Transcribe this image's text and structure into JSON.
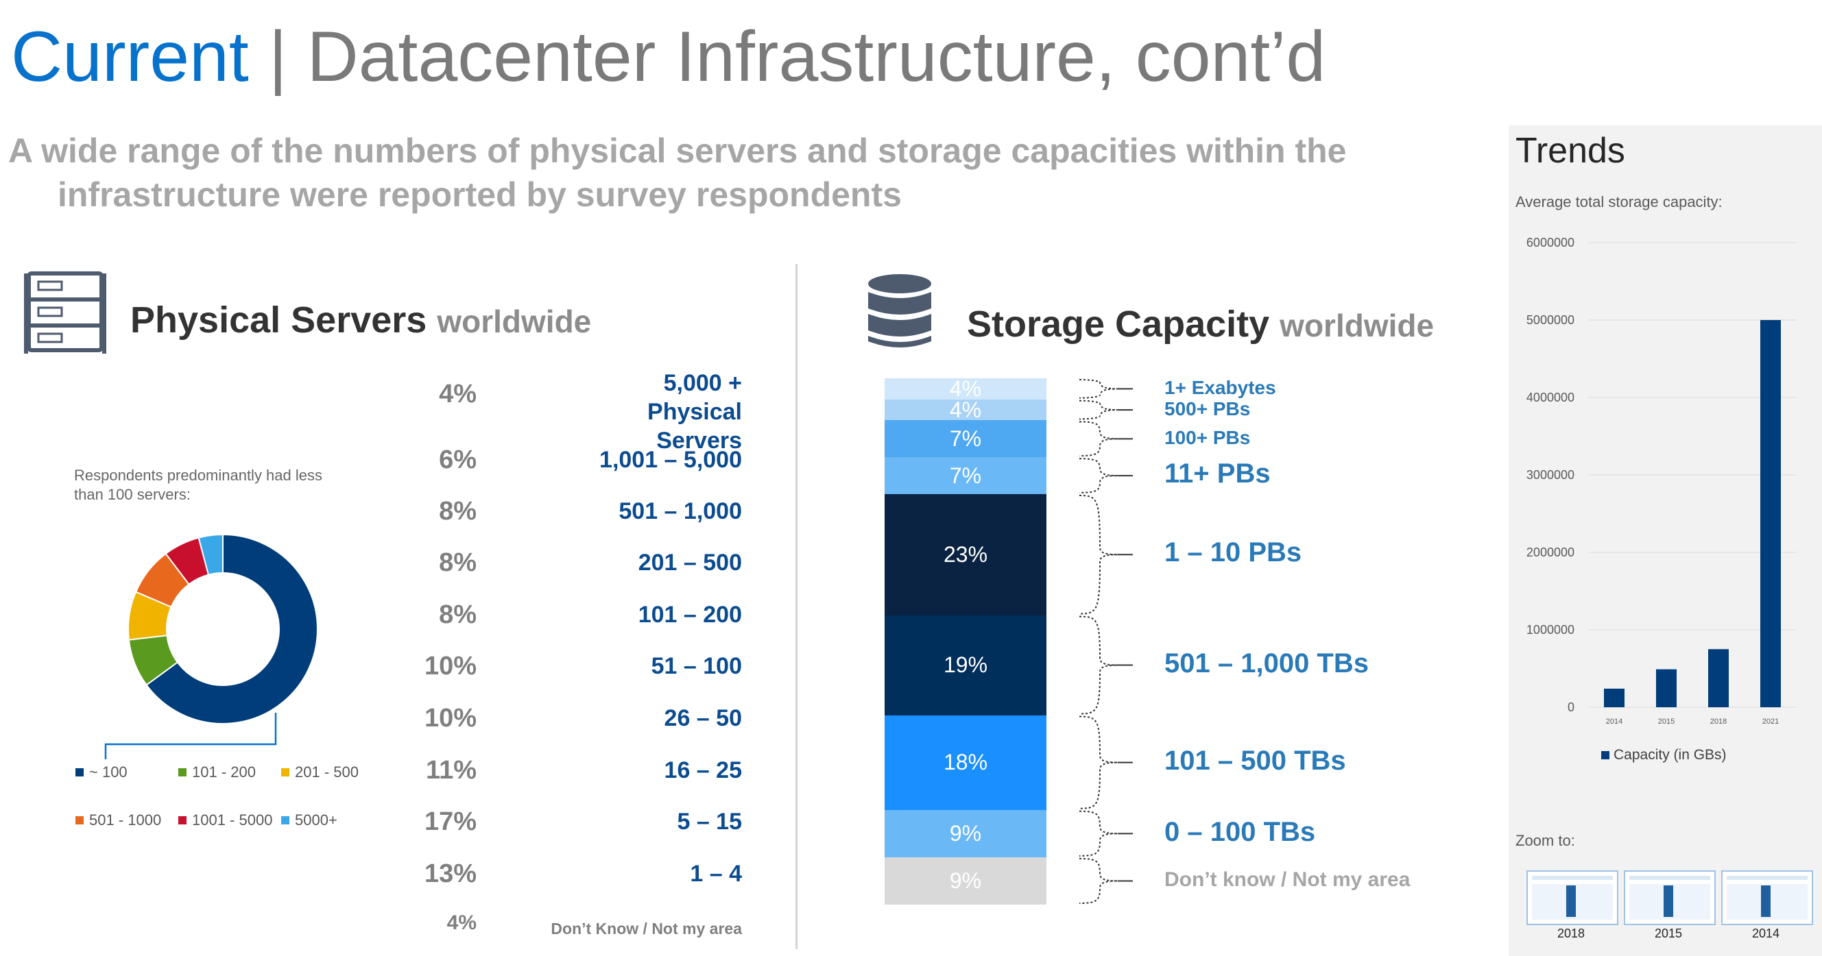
{
  "header": {
    "title_accent": "Current",
    "title_rest": " | Datacenter Infrastructure, cont’d",
    "subtitle": "A wide range of the numbers of physical servers and storage capacities within the infrastructure were reported by survey respondents"
  },
  "servers": {
    "title": "Physical Servers",
    "title_suffix": "worldwide",
    "icon": "server-rack-icon",
    "rows": [
      {
        "pct": "4%",
        "range": "5,000 + Physical Servers"
      },
      {
        "pct": "6%",
        "range": "1,001 – 5,000"
      },
      {
        "pct": "8%",
        "range": "501 – 1,000"
      },
      {
        "pct": "8%",
        "range": "201 – 500"
      },
      {
        "pct": "8%",
        "range": "101 – 200"
      },
      {
        "pct": "10%",
        "range": "51 – 100"
      },
      {
        "pct": "10%",
        "range": "26 – 50"
      },
      {
        "pct": "11%",
        "range": "16 – 25"
      },
      {
        "pct": "17%",
        "range": "5 – 15"
      },
      {
        "pct": "13%",
        "range": "1 – 4"
      },
      {
        "pct": "4%",
        "range": "Don’t Know / Not my area"
      }
    ],
    "note": "Respondents predominantly had less than 100 servers:"
  },
  "storage": {
    "title": "Storage Capacity",
    "title_suffix": "worldwide",
    "icon": "database-icon"
  },
  "trends": {
    "title": "Trends",
    "subtitle": "Average total storage capacity:",
    "zoom_label": "Zoom to:",
    "thumbnails": [
      "2018",
      "2015",
      "2014"
    ]
  },
  "colors": {
    "accent": "#0672cb",
    "dark_navy": "#0a2342",
    "navy": "#003d7a",
    "blue": "#1a8fff",
    "light_blue": "#63b3ff"
  },
  "chart_data": [
    {
      "type": "pie",
      "categories": [
        "~ 100",
        "101 - 200",
        "201 - 500",
        "501 - 1000",
        "1001 - 5000",
        "5000+"
      ],
      "values": [
        63,
        8,
        8,
        8,
        6,
        4
      ],
      "colors": [
        "#003d7a",
        "#5a9a1f",
        "#f0b400",
        "#e8681d",
        "#c8102e",
        "#3aa8e8"
      ],
      "donut": true,
      "legend": "bottom"
    },
    {
      "type": "bar",
      "stacked": true,
      "categories": [
        "1+ Exabytes",
        "500+ PBs",
        "100+ PBs",
        "11+ PBs",
        "1 – 10 PBs",
        "501 – 1,000 TBs",
        "101 – 500 TBs",
        "0 – 100 TBs",
        "Don’t know / Not my area"
      ],
      "values": [
        4,
        4,
        7,
        7,
        23,
        19,
        18,
        9,
        9
      ],
      "labels": [
        "4%",
        "4%",
        "7%",
        "7%",
        "23%",
        "19%",
        "18%",
        "9%",
        "9%"
      ],
      "colors": [
        "#cfe6fb",
        "#a8d2f6",
        "#4ea8f2",
        "#6ab8f5",
        "#0a2342",
        "#002f5c",
        "#1a8fff",
        "#6ab8f5",
        "#d9d9d9"
      ]
    },
    {
      "type": "bar",
      "categories": [
        "2014",
        "2015",
        "2018",
        "2021"
      ],
      "values": [
        240000,
        490000,
        750000,
        5000000
      ],
      "ylim": [
        0,
        6000000
      ],
      "yticks": [
        "0",
        "1000000",
        "2000000",
        "3000000",
        "4000000",
        "5000000",
        "6000000"
      ],
      "series": [
        {
          "name": "Capacity (in GBs)",
          "color": "#003d7a"
        }
      ],
      "grid": true,
      "legend": "bottom"
    }
  ]
}
